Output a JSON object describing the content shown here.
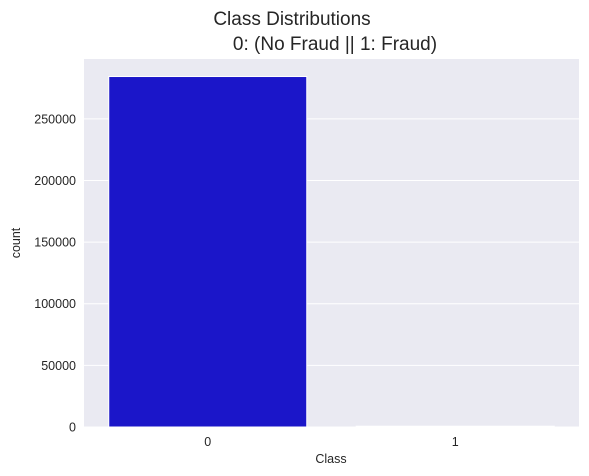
{
  "chart_data": {
    "type": "bar",
    "title": "Class Distributions",
    "subtitle": "0: (No Fraud || 1: Fraud)",
    "xlabel": "Class",
    "ylabel": "count",
    "categories": [
      "0",
      "1"
    ],
    "values": [
      284315,
      492
    ],
    "ylim": [
      0,
      298530
    ],
    "yticks": [
      0,
      50000,
      100000,
      150000,
      200000,
      250000
    ],
    "ytick_labels": [
      "0",
      "50000",
      "100000",
      "150000",
      "200000",
      "250000"
    ],
    "colors": [
      "#1b16c9",
      "#e21a1a"
    ],
    "background": "#eaeaf2",
    "grid": true,
    "grid_axis": "y"
  }
}
